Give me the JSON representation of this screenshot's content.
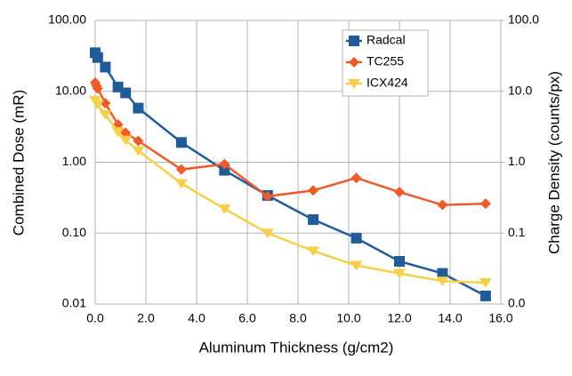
{
  "chart_data": {
    "type": "line",
    "xlabel": "Aluminum Thickness (g/cm2)",
    "ylabel": "Combined Dose (mR)",
    "y2label": "Charge Density (counts/px)",
    "xlim": [
      0,
      16
    ],
    "xticks": [
      {
        "value": 0,
        "label": "0.0"
      },
      {
        "value": 2,
        "label": "2.0"
      },
      {
        "value": 4,
        "label": "4.0"
      },
      {
        "value": 6,
        "label": "6.0"
      },
      {
        "value": 8,
        "label": "8.0"
      },
      {
        "value": 10,
        "label": "10.0"
      },
      {
        "value": 12,
        "label": "12.0"
      },
      {
        "value": 14,
        "label": "14.0"
      },
      {
        "value": 16,
        "label": "16.0"
      }
    ],
    "ylim": [
      0.01,
      100
    ],
    "yticks": [
      {
        "value": 0.01,
        "label": "0.01"
      },
      {
        "value": 0.1,
        "label": "0.10"
      },
      {
        "value": 1,
        "label": "1.00"
      },
      {
        "value": 10,
        "label": "10.00"
      },
      {
        "value": 100,
        "label": "100.00"
      }
    ],
    "y2lim": [
      0.01,
      100
    ],
    "y2ticks": [
      {
        "value": 0.01,
        "label": "0.0"
      },
      0.1,
      {
        "value": 1,
        "label": "1.0"
      },
      {
        "value": 10,
        "label": "10.0"
      },
      {
        "value": 100,
        "label": "100.0"
      }
    ],
    "ylog": true,
    "y2log": true,
    "grid": true,
    "legend": "upper right",
    "series": [
      {
        "name": "Radcal",
        "color": "#1f5c99",
        "marker": "square",
        "x": [
          0.0,
          0.1,
          0.4,
          0.9,
          1.2,
          1.7,
          3.4,
          5.1,
          6.8,
          8.6,
          10.3,
          12.0,
          13.7,
          15.4
        ],
        "values": [
          35,
          30,
          22,
          11.5,
          9.5,
          5.8,
          1.9,
          0.77,
          0.34,
          0.155,
          0.085,
          0.04,
          0.027,
          0.013
        ]
      },
      {
        "name": "TC255",
        "color": "#f05a28",
        "marker": "diamond",
        "axis": "y2",
        "x": [
          0.0,
          0.05,
          0.1,
          0.4,
          0.9,
          1.2,
          1.7,
          3.4,
          5.1,
          6.8,
          8.6,
          10.3,
          12.0,
          13.7,
          15.4
        ],
        "values": [
          13.3,
          12,
          11,
          6.8,
          3.4,
          2.6,
          2.0,
          0.79,
          0.94,
          0.33,
          0.4,
          0.6,
          0.38,
          0.25,
          0.26
        ]
      },
      {
        "name": "ICX424",
        "color": "#f7cf46",
        "marker": "triangle",
        "axis": "y2",
        "x": [
          0.0,
          0.1,
          0.4,
          0.9,
          1.2,
          1.7,
          3.4,
          5.1,
          6.8,
          8.6,
          10.3,
          12.0,
          13.7,
          15.4
        ],
        "values": [
          7.5,
          6.5,
          4.7,
          2.7,
          2.05,
          1.45,
          0.5,
          0.22,
          0.1,
          0.056,
          0.035,
          0.027,
          0.021,
          0.02
        ]
      }
    ]
  }
}
